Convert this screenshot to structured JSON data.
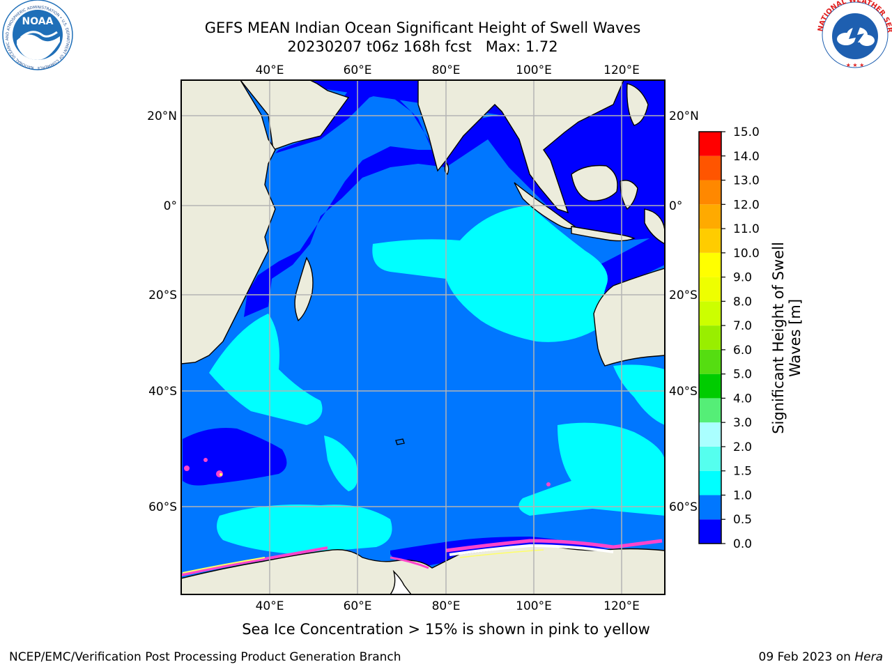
{
  "header": {
    "title_line1": "GEFS MEAN Indian Ocean Significant Height of Swell Waves",
    "title_line2": "20230207 t06z 168h fcst   Max: 1.72"
  },
  "logos": {
    "left": {
      "name": "NOAA",
      "ring_text": "NATIONAL OCEANIC AND ATMOSPHERIC ADMINISTRATION • U.S. DEPARTMENT OF COMMERCE •",
      "colors": {
        "sky": "#1f6fb8",
        "ring": "#ffffff",
        "bird": "#ffffff"
      }
    },
    "right": {
      "ring_text": "NATIONAL WEATHER SERVICE",
      "colors": {
        "ring_text": "#e0201f",
        "disc": "#1e5fb0",
        "cloud": "#ffffff",
        "bolt": "#1e5fb0"
      }
    }
  },
  "map": {
    "lon_labels": [
      "40°E",
      "60°E",
      "80°E",
      "100°E",
      "120°E"
    ],
    "lat_labels": [
      "20°N",
      "0°",
      "20°S",
      "40°S",
      "60°S"
    ],
    "colors": {
      "land": "#ececdc",
      "band_0_0p5": "#0000ff",
      "band_0p5_1": "#0077ff",
      "band_1_1p5": "#00ffff",
      "ice_pink": "#ff44cc",
      "ice_yellow": "#ffff66",
      "ice_white": "#ffffff",
      "grid": "#b4b4b4",
      "coast": "#000000"
    }
  },
  "colorbar": {
    "label": "Significant Height of Swell Waves [m]",
    "ticks": [
      "0.0",
      "0.5",
      "1.0",
      "1.5",
      "2.0",
      "3.0",
      "4.0",
      "5.0",
      "6.0",
      "7.0",
      "8.0",
      "9.0",
      "10.0",
      "11.0",
      "12.0",
      "13.0",
      "14.0",
      "15.0"
    ],
    "colors": [
      "#0000ff",
      "#0077ff",
      "#00ffff",
      "#55ffee",
      "#aaffff",
      "#55ee77",
      "#00cc00",
      "#55dd11",
      "#99ee00",
      "#ccff00",
      "#eeff00",
      "#ffff00",
      "#ffcc00",
      "#ffaa00",
      "#ff8800",
      "#ff5500",
      "#ff0000"
    ]
  },
  "ice_note": "Sea Ice Concentration > 15% is shown in pink to yellow",
  "footer": {
    "left": "NCEP/EMC/Verification Post Processing Product Generation Branch",
    "date": "09 Feb 2023 on ",
    "host": "Hera"
  }
}
